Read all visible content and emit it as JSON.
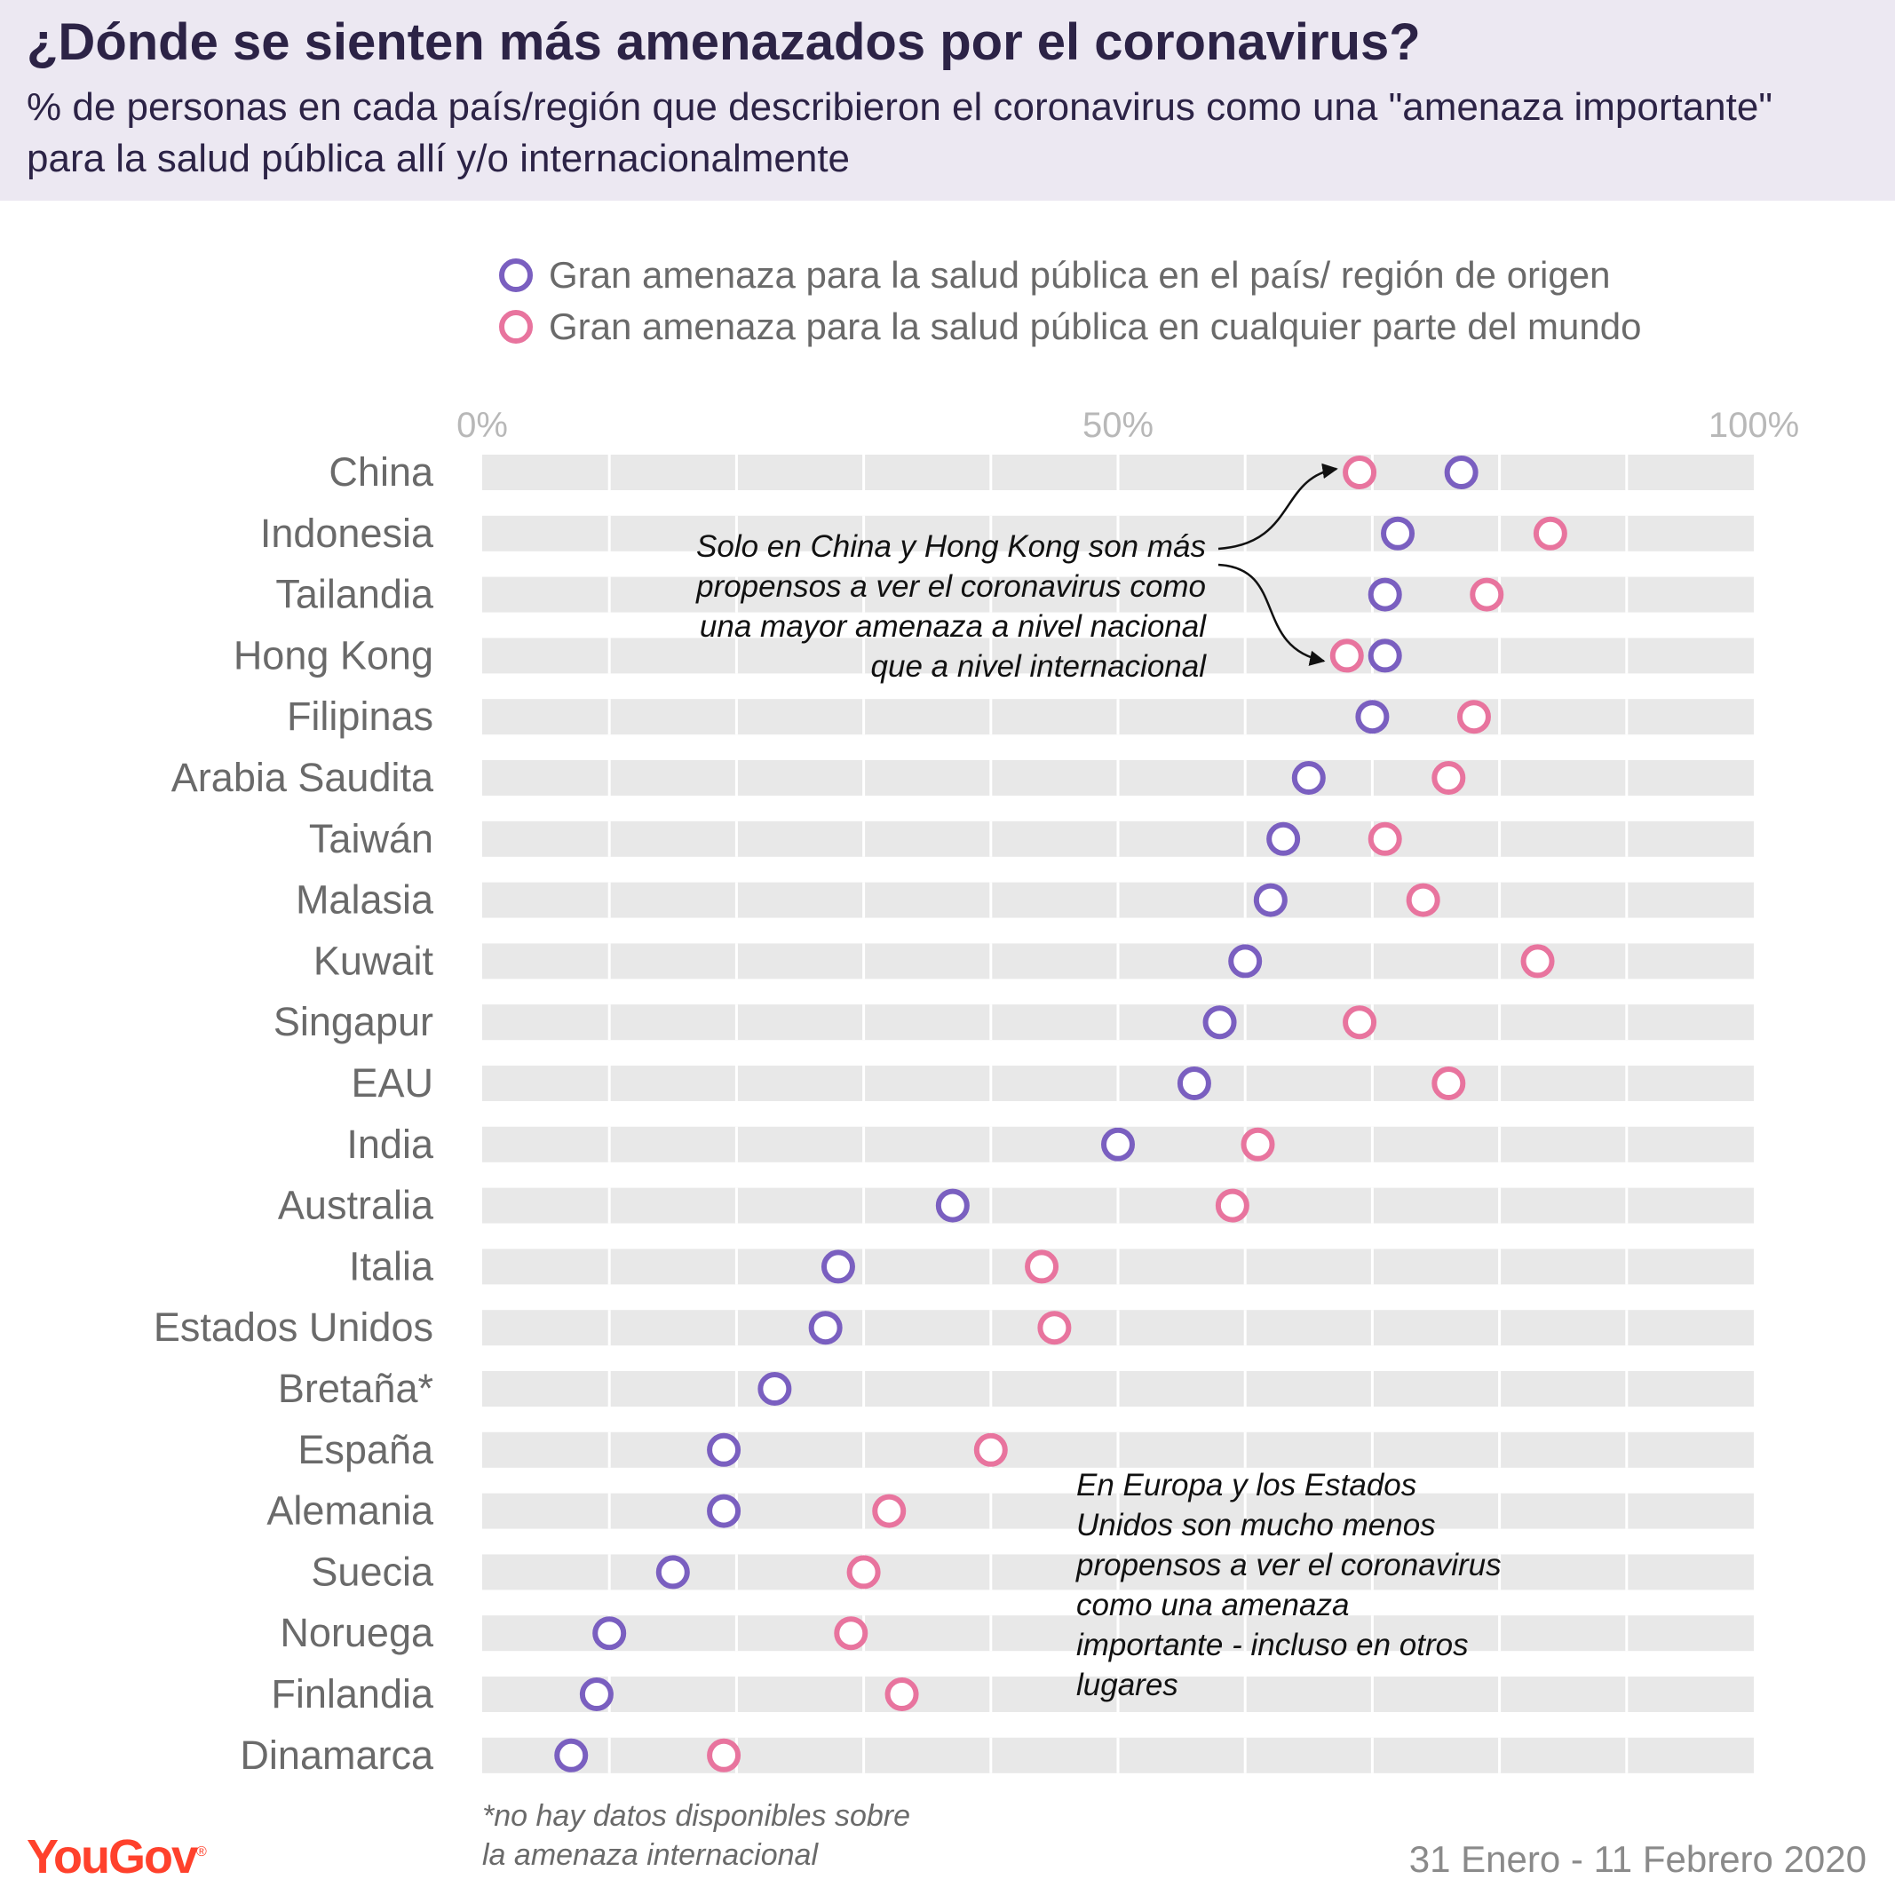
{
  "header": {
    "title": "¿Dónde se sienten más amenazados por el coronavirus?",
    "subtitle": "% de personas en cada país/región que describieron el coronavirus como una \"amenaza importante\" para la salud pública allí y/o internacionalmente"
  },
  "legend": {
    "home": "Gran amenaza para la salud pública en el país/ región de origen",
    "world": "Gran amenaza para la salud pública en cualquier parte del mundo"
  },
  "colors": {
    "home": "#7a5fc0",
    "world": "#e8749e",
    "band": "#e8e8e8",
    "grid": "#ffffff"
  },
  "annotations": {
    "asia": "Solo en China y Hong Kong son más propensos a ver el coronavirus como una mayor amenaza a nivel nacional que a nivel internacional",
    "europe": "En Europa y los Estados Unidos son mucho menos propensos a ver el coronavirus como una amenaza importante - incluso en otros lugares"
  },
  "footer": {
    "footnote_line1": "*no hay datos disponibles sobre",
    "footnote_line2": "la amenaza internacional",
    "logo": "YouGov",
    "logo_mark": "®",
    "date": "31 Enero - 11 Febrero 2020"
  },
  "chart_data": {
    "type": "scatter",
    "title": "¿Dónde se sienten más amenazados por el coronavirus?",
    "xlim": [
      0,
      100
    ],
    "xticks": [
      0,
      50,
      100
    ],
    "xtick_labels": [
      "0%",
      "50%",
      "100%"
    ],
    "categories": [
      "China",
      "Indonesia",
      "Tailandia",
      "Hong Kong",
      "Filipinas",
      "Arabia Saudita",
      "Taiwán",
      "Malasia",
      "Kuwait",
      "Singapur",
      "EAU",
      "India",
      "Australia",
      "Italia",
      "Estados Unidos",
      "Bretaña*",
      "España",
      "Alemania",
      "Suecia",
      "Noruega",
      "Finlandia",
      "Dinamarca"
    ],
    "series": [
      {
        "name": "Gran amenaza para la salud pública en el país/ región de origen",
        "values": [
          77,
          72,
          71,
          71,
          70,
          65,
          63,
          62,
          60,
          58,
          56,
          50,
          37,
          28,
          27,
          23,
          19,
          19,
          15,
          10,
          9,
          7
        ]
      },
      {
        "name": "Gran amenaza para la salud pública en cualquier parte del mundo",
        "values": [
          69,
          84,
          79,
          68,
          78,
          76,
          71,
          74,
          83,
          69,
          76,
          61,
          59,
          44,
          45,
          null,
          40,
          32,
          30,
          29,
          33,
          19
        ]
      }
    ],
    "grid": true
  }
}
